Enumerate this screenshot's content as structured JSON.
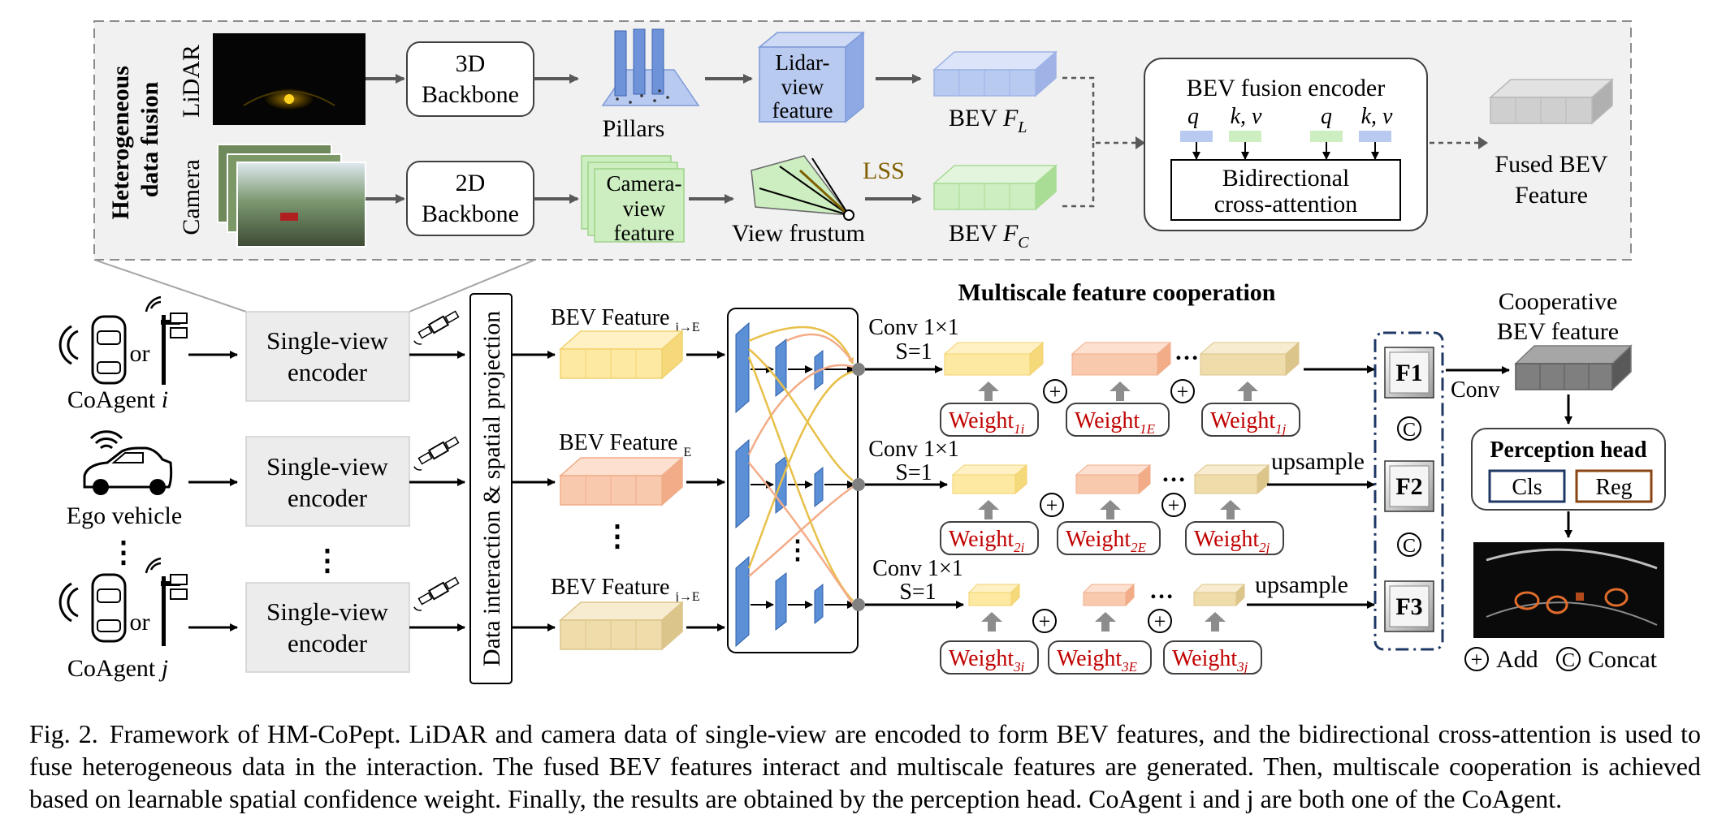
{
  "fusion": {
    "title_line1": "Heterogeneous",
    "title_line2": "data fusion",
    "lidar_label": "LiDAR",
    "camera_label": "Camera",
    "backbone_3d_l1": "3D",
    "backbone_3d_l2": "Backbone",
    "backbone_2d_l1": "2D",
    "backbone_2d_l2": "Backbone",
    "pillars": "Pillars",
    "lidar_view_l1": "Lidar-",
    "lidar_view_l2": "view",
    "lidar_view_l3": "feature",
    "camera_view_l1": "Camera-",
    "camera_view_l2": "view",
    "camera_view_l3": "feature",
    "view_frustum": "View frustum",
    "lss": "LSS",
    "bev_fl": "BEV ",
    "bev_fl_sym": "F",
    "bev_fl_sub": "L",
    "bev_fc": "BEV ",
    "bev_fc_sym": "F",
    "bev_fc_sub": "C",
    "encoder_title": "BEV fusion encoder",
    "q": "q",
    "kv": "k, v",
    "cross_attn_l1": "Bidirectional",
    "cross_attn_l2": "cross-attention",
    "fused_l1": "Fused BEV",
    "fused_l2": "Feature"
  },
  "agents": {
    "or": "or",
    "coagent_i": "CoAgent ",
    "coagent_i_sym": "i",
    "ego": "Ego vehicle",
    "coagent_j": "CoAgent ",
    "coagent_j_sym": "j",
    "vdots": "⋮"
  },
  "encoders": {
    "line1": "Single-view",
    "line2": "encoder"
  },
  "projection_label": "Data interaction & spatial projection",
  "bev_features": {
    "f1": "BEV Feature ",
    "f1_sub": "i→E",
    "f2": "BEV Feature ",
    "f2_sub": "E",
    "f3": "BEV Feature ",
    "f3_sub": "j→E"
  },
  "multiscale": {
    "title": "Multiscale feature cooperation",
    "conv_l1": "Conv 1×1",
    "conv_l2": "S=1",
    "upsample": "upsample",
    "dots": "…",
    "weight": "Weight",
    "w_rows": [
      [
        "1i",
        "1E",
        "1j"
      ],
      [
        "2i",
        "2E",
        "2j"
      ],
      [
        "3i",
        "3E",
        "3j"
      ]
    ],
    "f_labels": [
      "F1",
      "F2",
      "F3"
    ],
    "concat": "C",
    "add": "+"
  },
  "output": {
    "cooperative_l1": "Cooperative",
    "cooperative_l2": "BEV feature",
    "conv": "Conv",
    "perception_head": "Perception head",
    "cls": "Cls",
    "reg": "Reg",
    "legend_add": "Add",
    "legend_concat": "Concat"
  },
  "caption": {
    "fig": "Fig. 2.",
    "text": "Framework of HM-CoPept. LiDAR and camera data of single-view are encoded to form BEV features, and the bidirectional cross-attention is used to fuse heterogeneous data in the interaction. The fused BEV features interact and multiscale features are generated. Then, multiscale cooperation is achieved based on learnable spatial confidence weight. Finally, the results are obtained by the perception head. CoAgent i and j are both one of the CoAgent."
  },
  "colors": {
    "yellow": "#fde9a2",
    "orange": "#f9c9ae",
    "tan": "#efdcab",
    "blue": "#b9caf0",
    "green": "#cdeec0",
    "gray": "#c9c9c9",
    "weight_red": "#c00000",
    "cnn_blue": "#5b8fd6",
    "panel_bg": "#f1f1f1",
    "f_box_border": "#1f3864"
  },
  "icons": [
    "car-topview-icon",
    "roadside-camera-icon",
    "car-side-icon",
    "wireless-signal-icon",
    "satellite-icon"
  ]
}
